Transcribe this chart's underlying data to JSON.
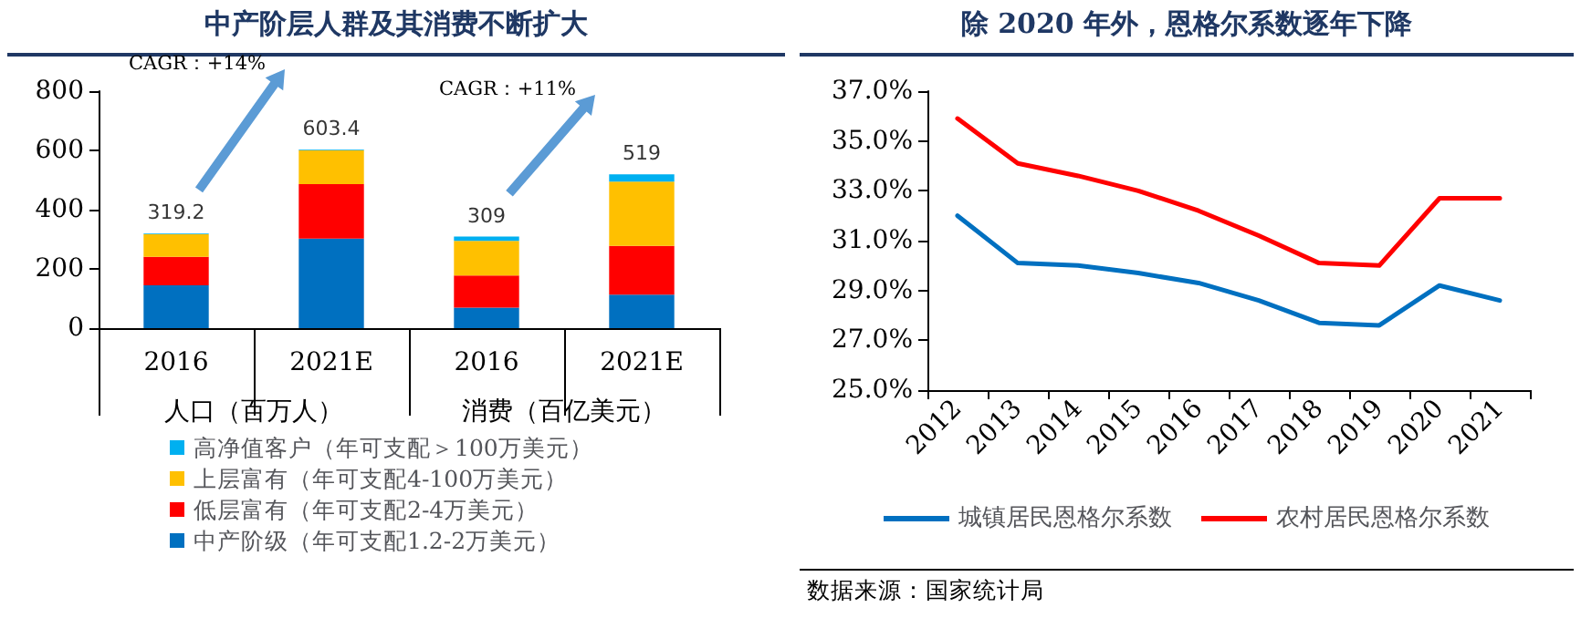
{
  "chart_data": [
    {
      "type": "bar",
      "title": "中产阶层人群及其消费不断扩大",
      "categories": [
        "2016",
        "2021E",
        "2016",
        "2021E"
      ],
      "stacked": true,
      "series": [
        {
          "name": "中产阶级（年可支配1.2-2万美元）",
          "color": "#0070c0",
          "values": [
            145,
            302,
            69,
            113
          ]
        },
        {
          "name": "低层富有（年可支配2-4万美元）",
          "color": "#ff0000",
          "values": [
            96,
            184,
            109,
            165
          ]
        },
        {
          "name": "上层富有（年可支配4-100万美元）",
          "color": "#ffc000",
          "values": [
            76,
            115,
            117,
            217
          ]
        },
        {
          "name": "高净值客户（年可支配＞100万美元）",
          "color": "#00b0f0",
          "values": [
            2.2,
            2.4,
            14,
            24
          ]
        }
      ],
      "totals": [
        "319.2",
        "603.4",
        "309",
        "519"
      ],
      "ylim": [
        0,
        800
      ],
      "yticks": [
        0,
        200,
        400,
        600,
        800
      ],
      "grid": false,
      "legend": "bottom",
      "annotations": [
        "人口（百万人）",
        "消费（百亿美元）",
        "CAGR：+14%",
        "CAGR：+11%"
      ]
    },
    {
      "type": "line",
      "title": "除 2020 年外，恩格尔系数逐年下降",
      "categories": [
        "2012",
        "2013",
        "2014",
        "2015",
        "2016",
        "2017",
        "2018",
        "2019",
        "2020",
        "2021"
      ],
      "series": [
        {
          "name": "城镇居民恩格尔系数",
          "color": "#0070c0",
          "values": [
            32.0,
            30.1,
            30.0,
            29.7,
            29.3,
            28.6,
            27.7,
            27.6,
            29.2,
            28.6
          ]
        },
        {
          "name": "农村居民恩格尔系数",
          "color": "#ff0000",
          "values": [
            35.9,
            34.1,
            33.6,
            33.0,
            32.2,
            31.2,
            30.1,
            30.0,
            32.7,
            32.7
          ]
        }
      ],
      "ylim": [
        25,
        37
      ],
      "yticks": [
        {
          "value": 25,
          "label": "25.0%"
        },
        {
          "value": 27,
          "label": "27.0%"
        },
        {
          "value": 29,
          "label": "29.0%"
        },
        {
          "value": 31,
          "label": "31.0%"
        },
        {
          "value": 33,
          "label": "33.0%"
        },
        {
          "value": 35,
          "label": "35.0%"
        },
        {
          "value": 37,
          "label": "37.0%"
        }
      ],
      "grid": false,
      "legend": "bottom",
      "marker": "none",
      "line_style": "solid",
      "annotations": [
        "数据来源：国家统计局"
      ]
    }
  ]
}
